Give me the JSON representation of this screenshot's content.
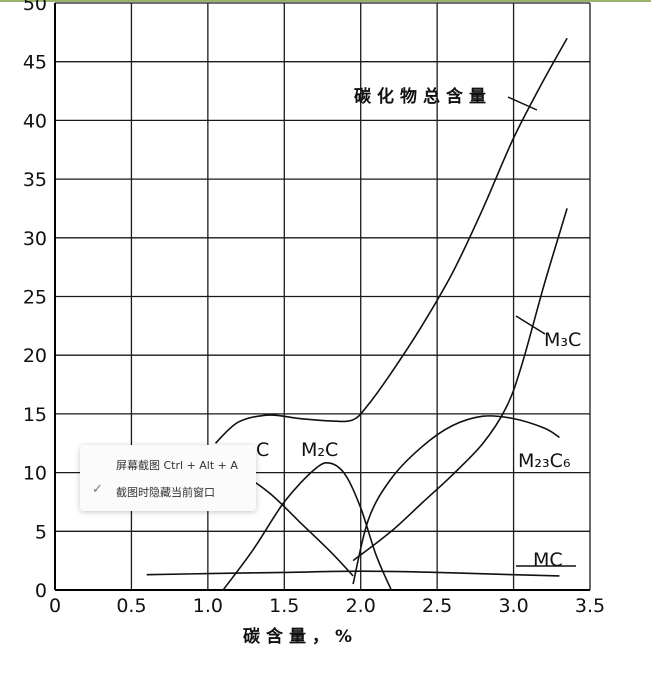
{
  "chart_data": {
    "type": "line",
    "title": "",
    "xlabel": "碳含量，%",
    "ylabel": "",
    "xlim": [
      0,
      3.5
    ],
    "ylim": [
      0,
      50
    ],
    "xticks": [
      "0",
      "0.5",
      "1.0",
      "1.5",
      "2.0",
      "2.5",
      "3.0",
      "3.5"
    ],
    "yticks": [
      "0",
      "5",
      "10",
      "15",
      "20",
      "25",
      "30",
      "35",
      "40",
      "45",
      "50"
    ],
    "grid": true,
    "series": [
      {
        "name": "碳化物总含量",
        "x": [
          1.05,
          1.2,
          1.4,
          1.6,
          1.8,
          1.95,
          2.05,
          2.2,
          2.4,
          2.6,
          2.8,
          3.0,
          3.2,
          3.35
        ],
        "y": [
          12.5,
          14.3,
          14.9,
          14.6,
          14.4,
          14.5,
          15.8,
          18.5,
          22.5,
          27,
          32.5,
          38.5,
          43.5,
          47
        ]
      },
      {
        "name": "M₃C",
        "x": [
          1.95,
          2.2,
          2.4,
          2.6,
          2.8,
          2.95,
          3.05,
          3.2,
          3.35
        ],
        "y": [
          2.5,
          5,
          7.4,
          9.8,
          12.5,
          15.5,
          19,
          26,
          32.5
        ]
      },
      {
        "name": "M₂₃C₆",
        "x": [
          1.95,
          2.05,
          2.2,
          2.4,
          2.6,
          2.8,
          3.0,
          3.2,
          3.3
        ],
        "y": [
          0.5,
          6,
          9.5,
          12.2,
          14,
          14.8,
          14.6,
          13.8,
          13
        ]
      },
      {
        "name": "M₂C",
        "x": [
          1.1,
          1.3,
          1.5,
          1.7,
          1.8,
          1.9,
          2.0,
          2.1,
          2.2
        ],
        "y": [
          0,
          3.5,
          7.5,
          10.3,
          10.8,
          9.8,
          7,
          3,
          0
        ]
      },
      {
        "name": "",
        "x": [
          1.05,
          1.2,
          1.4,
          1.6,
          1.8,
          1.95
        ],
        "y": [
          10.5,
          10,
          8.3,
          5.8,
          3.3,
          1.2
        ]
      },
      {
        "name": "MC",
        "x": [
          0.6,
          1.0,
          1.5,
          2.0,
          2.5,
          3.0,
          3.3
        ],
        "y": [
          1.3,
          1.4,
          1.5,
          1.6,
          1.5,
          1.3,
          1.2
        ]
      }
    ],
    "labels": {
      "total": "碳化物总含量",
      "m3c": "M₃C",
      "m23c6": "M₂₃C₆",
      "m2c": "M₂C",
      "mc": "MC",
      "c_partial": "C"
    }
  },
  "popup": {
    "item1": "屏幕截图 Ctrl + Alt + A",
    "item2": "截图时隐藏当前窗口",
    "check_icon": "✓"
  }
}
